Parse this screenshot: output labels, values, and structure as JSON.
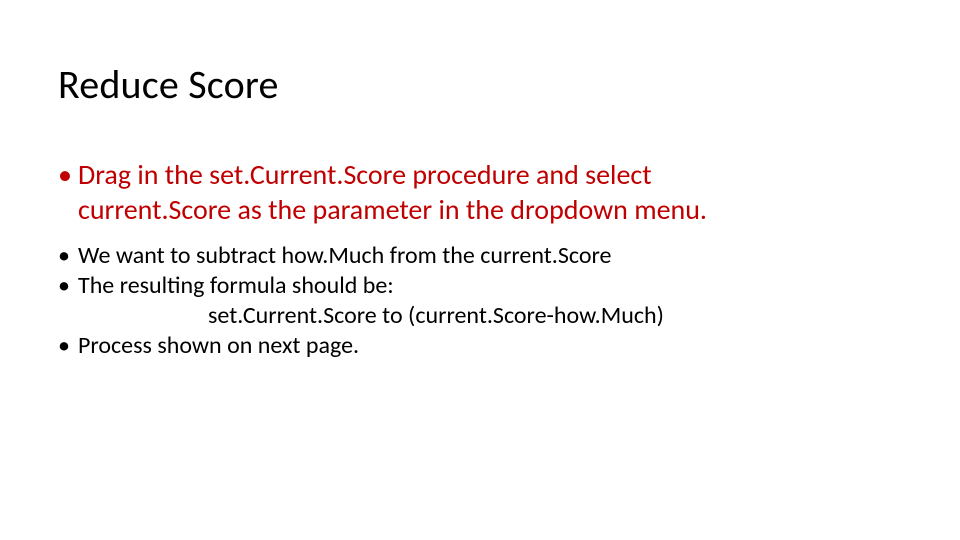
{
  "title": "Reduce Score",
  "styles": {
    "title_fontsize": 40,
    "body_fontsize": 28,
    "sub_fontsize": 24,
    "accent_color": "#c00000",
    "text_color": "#000000",
    "background_color": "#ffffff",
    "font_family": "Calibri"
  },
  "main_bullet": {
    "line1_a": "Drag in the ",
    "line1_b": "set.Current.Score",
    "line1_c": " procedure and select",
    "line2_a": "current.Score",
    "line2_b": " as the parameter in the dropdown menu."
  },
  "sub_bullets": {
    "b1_a": "We want to subtract ",
    "b1_b": "how.Much",
    "b1_c": " from the ",
    "b1_d": "current.Score",
    "b2": "The resulting formula should be:",
    "b2_indent": "set.Current.Score to (current.Score-how.Much)",
    "b3": "Process shown on next page."
  }
}
